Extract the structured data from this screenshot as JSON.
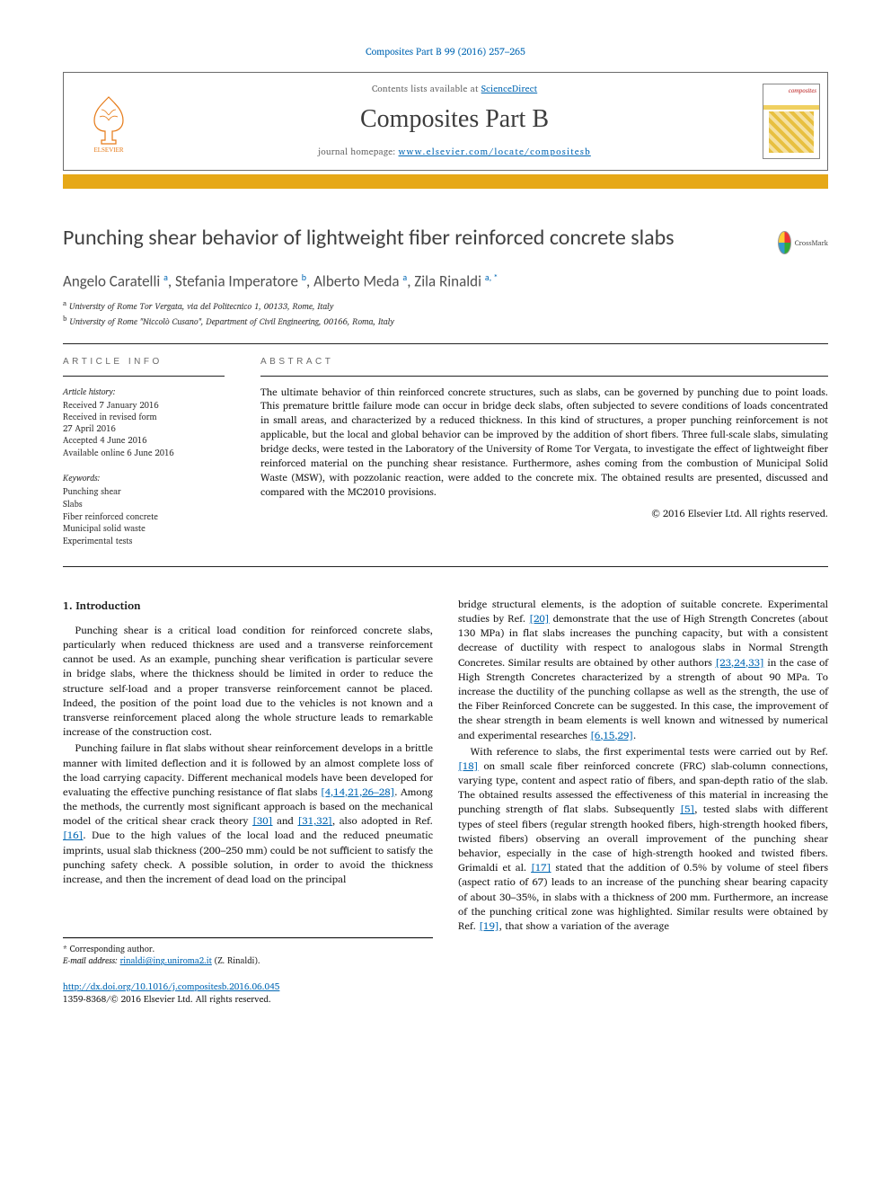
{
  "citation": "Composites Part B 99 (2016) 257–265",
  "header": {
    "contents_prefix": "Contents lists available at ",
    "contents_link": "ScienceDirect",
    "journal": "Composites Part B",
    "homepage_prefix": "journal homepage: ",
    "homepage_url": "www.elsevier.com/locate/compositesb",
    "cover_label": "composites"
  },
  "title": "Punching shear behavior of lightweight fiber reinforced concrete slabs",
  "crossmark": "CrossMark",
  "authors_html": "Angelo Caratelli <sup>a</sup>, Stefania Imperatore <sup>b</sup>, Alberto Meda <sup>a</sup>, Zila Rinaldi <sup>a, *</sup>",
  "affiliations": [
    "a University of Rome Tor Vergata, via del Politecnico 1, 00133, Rome, Italy",
    "b University of Rome \"Niccolò Cusano\", Department of Civil Engineering, 00166, Roma, Italy"
  ],
  "info": {
    "article_info_head": "ARTICLE INFO",
    "abstract_head": "ABSTRACT",
    "history_label": "Article history:",
    "history": [
      "Received 7 January 2016",
      "Received in revised form",
      "27 April 2016",
      "Accepted 4 June 2016",
      "Available online 6 June 2016"
    ],
    "keywords_label": "Keywords:",
    "keywords": [
      "Punching shear",
      "Slabs",
      "Fiber reinforced concrete",
      "Municipal solid waste",
      "Experimental tests"
    ]
  },
  "abstract": "The ultimate behavior of thin reinforced concrete structures, such as slabs, can be governed by punching due to point loads. This premature brittle failure mode can occur in bridge deck slabs, often subjected to severe conditions of loads concentrated in small areas, and characterized by a reduced thickness. In this kind of structures, a proper punching reinforcement is not applicable, but the local and global behavior can be improved by the addition of short fibers. Three full-scale slabs, simulating bridge decks, were tested in the Laboratory of the University of Rome Tor Vergata, to investigate the effect of lightweight fiber reinforced material on the punching shear resistance. Furthermore, ashes coming from the combustion of Municipal Solid Waste (MSW), with pozzolanic reaction, were added to the concrete mix. The obtained results are presented, discussed and compared with the MC2010 provisions.",
  "copyright": "© 2016 Elsevier Ltd. All rights reserved.",
  "section1_heading": "1. Introduction",
  "col1": {
    "p1": "Punching shear is a critical load condition for reinforced concrete slabs, particularly when reduced thickness are used and a transverse reinforcement cannot be used. As an example, punching shear verification is particular severe in bridge slabs, where the thickness should be limited in order to reduce the structure self-load and a proper transverse reinforcement cannot be placed. Indeed, the position of the point load due to the vehicles is not known and a transverse reinforcement placed along the whole structure leads to remarkable increase of the construction cost.",
    "p2a": "Punching failure in flat slabs without shear reinforcement develops in a brittle manner with limited deflection and it is followed by an almost complete loss of the load carrying capacity. Different mechanical models have been developed for evaluating the effective punching resistance of flat slabs ",
    "p2_ref1": "[4,14,21,26–28]",
    "p2b": ". Among the methods, the currently most significant approach is based on the mechanical model of the critical shear crack theory ",
    "p2_ref2": "[30]",
    "p2c": " and ",
    "p2_ref3": "[31,32]",
    "p2d": ", also adopted in Ref. ",
    "p2_ref4": "[16]",
    "p2e": ". Due to the high values of the local load and the reduced pneumatic imprints, usual slab thickness (200–250 mm) could be not sufficient to satisfy the punching safety check. A possible solution, in order to avoid the thickness increase, and then the increment of dead load on the principal"
  },
  "col2": {
    "p1a": "bridge structural elements, is the adoption of suitable concrete. Experimental studies by Ref. ",
    "p1_ref1": "[20]",
    "p1b": " demonstrate that the use of High Strength Concretes (about 130 MPa) in flat slabs increases the punching capacity, but with a consistent decrease of ductility with respect to analogous slabs in Normal Strength Concretes. Similar results are obtained by other authors ",
    "p1_ref2": "[23,24,33]",
    "p1c": " in the case of High Strength Concretes characterized by a strength of about 90 MPa. To increase the ductility of the punching collapse as well as the strength, the use of the Fiber Reinforced Concrete can be suggested. In this case, the improvement of the shear strength in beam elements is well known and witnessed by numerical and experimental researches ",
    "p1_ref3": "[6,15,29]",
    "p1d": ".",
    "p2a": "With reference to slabs, the first experimental tests were carried out by Ref. ",
    "p2_ref1": "[18]",
    "p2b": " on small scale fiber reinforced concrete (FRC) slab-column connections, varying type, content and aspect ratio of fibers, and span-depth ratio of the slab. The obtained results assessed the effectiveness of this material in increasing the punching strength of flat slabs. Subsequently ",
    "p2_ref2": "[5]",
    "p2c": ", tested slabs with different types of steel fibers (regular strength hooked fibers, high-strength hooked fibers, twisted fibers) observing an overall improvement of the punching shear behavior, especially in the case of high-strength hooked and twisted fibers. Grimaldi et al. ",
    "p2_ref3": "[17]",
    "p2d": " stated that the addition of 0.5% by volume of steel fibers (aspect ratio of 67) leads to an increase of the punching shear bearing capacity of about 30–35%, in slabs with a thickness of 200 mm. Furthermore, an increase of the punching critical zone was highlighted. Similar results were obtained by Ref. ",
    "p2_ref4": "[19]",
    "p2e": ", that show a variation of the average"
  },
  "footnotes": {
    "corr": "* Corresponding author.",
    "email_label": "E-mail address: ",
    "email": "rinaldi@ing.uniroma2.it",
    "email_who": " (Z. Rinaldi)."
  },
  "doi": {
    "url": "http://dx.doi.org/10.1016/j.compositesb.2016.06.045",
    "issn_line": "1359-8368/© 2016 Elsevier Ltd. All rights reserved."
  },
  "colors": {
    "link": "#0066b3",
    "bar": "#e6a817",
    "text": "#1a1a1a",
    "muted": "#6a6a6a"
  }
}
